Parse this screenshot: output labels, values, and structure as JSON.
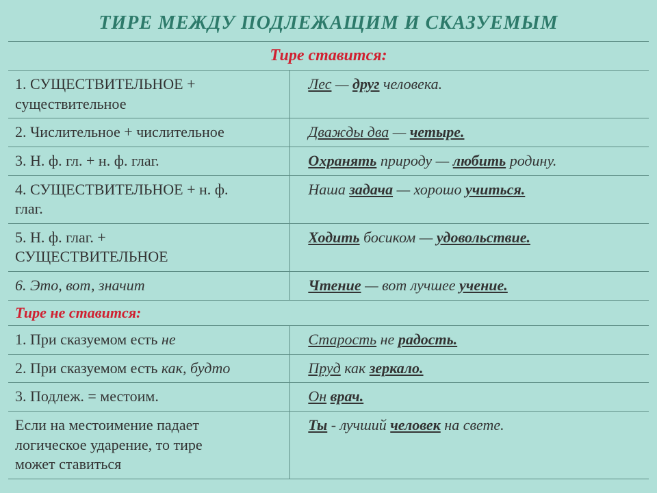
{
  "title": "ТИРЕ МЕЖДУ ПОДЛЕЖАЩИМ  И СКАЗУЕМЫМ",
  "sec1": "Тире ставится:",
  "sec2": "Тире не ставится:",
  "r1_rule_a": "1. СУЩЕСТВИТЕЛЬНОЕ +",
  "r1_rule_b": "существительное",
  "r1_ex_pre": "Лес",
  "r1_ex_mid": " — ",
  "r1_ex_b": "друг",
  "r1_ex_end": " человека.",
  "r2_rule": "2. Числительное + числительное",
  "r2_ex_pre": "Дважды два",
  "r2_ex_mid": " — ",
  "r2_ex_b": "четыре.",
  "r3_rule": "3. Н. ф. гл. + н. ф. глаг.",
  "r3_ex_pre": "Охранять",
  "r3_ex_mid1": " природу — ",
  "r3_ex_b": "любить",
  "r3_ex_end": " родину.",
  "r4_rule_a": "4. СУЩЕСТВИТЕЛЬНОЕ + н. ф.",
  "r4_rule_b": "глаг.",
  "r4_ex_pre": "Наша ",
  "r4_ex_b1": "задача",
  "r4_ex_mid": " — хорошо ",
  "r4_ex_b2": "учиться.",
  "r5_rule_a": "5. Н. ф. глаг. +",
  "r5_rule_b": "СУЩЕСТВИТЕЛЬНОЕ",
  "r5_ex_b1": "Ходить",
  "r5_ex_mid": " босиком — ",
  "r5_ex_b2": "удовольствие.",
  "r6_rule": "6. Это, вот, значит",
  "r6_ex_b1": "Чтение",
  "r6_ex_mid": " — вот лучшее ",
  "r6_ex_b2": "учение.",
  "n1_rule_a": "1. При сказуемом есть ",
  "n1_rule_i": "не",
  "n1_ex_pre": "Старость",
  "n1_ex_mid": " не ",
  "n1_ex_b": "радость.",
  "n2_rule_a": "2. При сказуемом есть ",
  "n2_rule_i": "как, будто",
  "n2_ex_pre": " Пруд",
  "n2_ex_mid": " как ",
  "n2_ex_b": "зеркало.",
  "n3_rule": "3. Подлеж. = местоим.",
  "n3_ex_pre": " Он",
  "n3_ex_sp": " ",
  "n3_ex_b": "врач.",
  "n4_rule_a": "Если на местоимение падает",
  "n4_rule_b": "логическое  ударение, то тире",
  "n4_rule_c": "может ставиться",
  "n4_ex_b1": "Ты",
  "n4_ex_mid": " - лучший ",
  "n4_ex_b2": "человек",
  "n4_ex_end": " на свете."
}
